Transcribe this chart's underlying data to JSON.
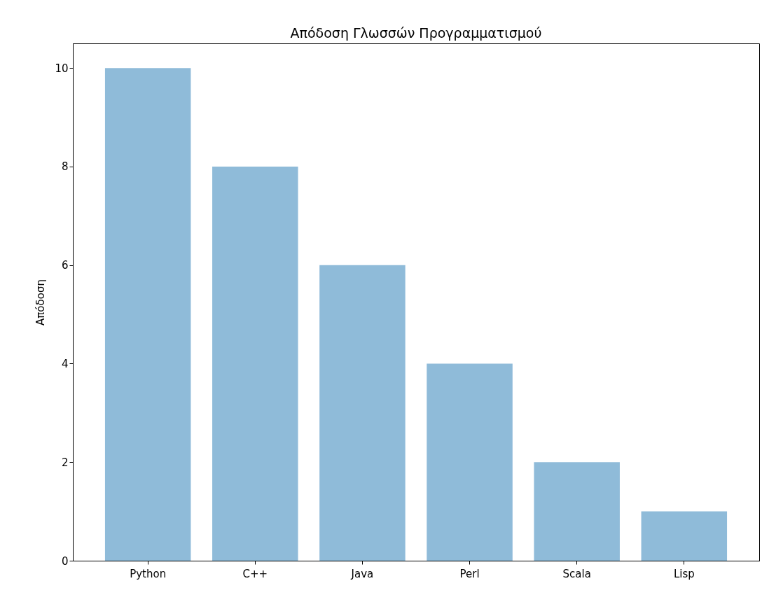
{
  "chart_data": {
    "type": "bar",
    "title": "Απόδοση Γλωσσών Προγραμματισμού",
    "ylabel": "Απόδοση",
    "categories": [
      "Python",
      "C++",
      "Java",
      "Perl",
      "Scala",
      "Lisp"
    ],
    "values": [
      10,
      8,
      6,
      4,
      2,
      1
    ],
    "color": "#8fbbd9",
    "ylim": [
      0,
      10.5
    ],
    "yticks": [
      0,
      2,
      4,
      6,
      8,
      10
    ],
    "grid": false
  }
}
